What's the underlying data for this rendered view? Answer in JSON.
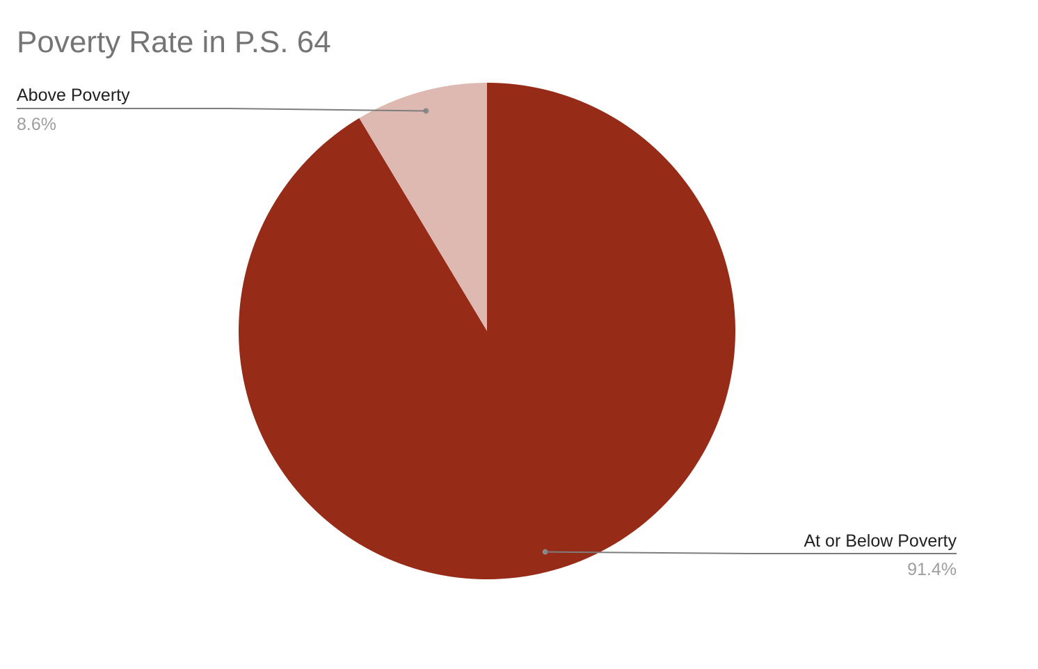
{
  "chart_data": {
    "type": "pie",
    "title": "Poverty Rate in P.S. 64",
    "slices": [
      {
        "label": "At or Below Poverty",
        "value": 91.4,
        "value_label": "91.4%",
        "color": "#962b17"
      },
      {
        "label": "Above Poverty",
        "value": 8.6,
        "value_label": "8.6%",
        "color": "#ddb9b1"
      }
    ],
    "start_angle": "12 o'clock",
    "direction": "clockwise",
    "legend": "none"
  }
}
